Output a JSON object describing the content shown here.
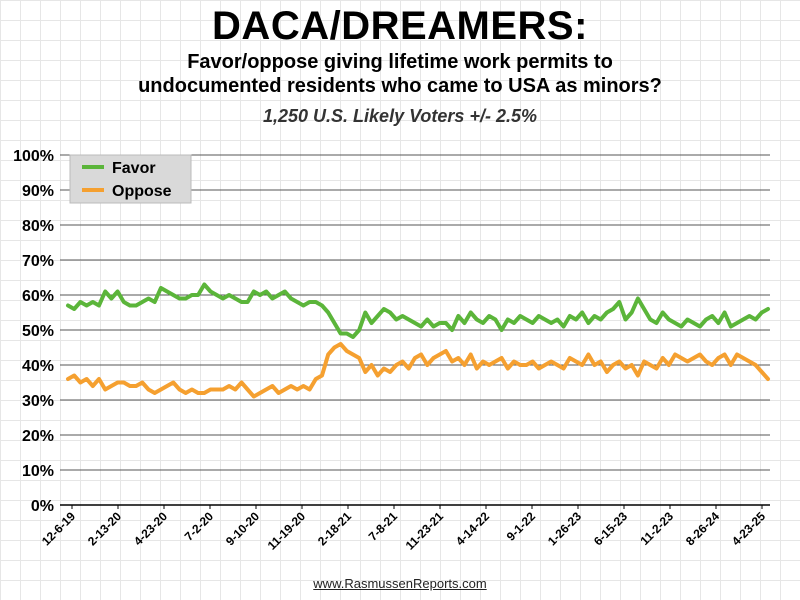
{
  "header": {
    "title": "DACA/DREAMERS:",
    "subtitle_line1": "Favor/oppose giving lifetime work permits to",
    "subtitle_line2": "undocumented residents who came to USA as minors?",
    "sample": "1,250 U.S. Likely Voters +/- 2.5%"
  },
  "footer": {
    "source": "www.RasmussenReports.com"
  },
  "colors": {
    "favor": "#5bb53a",
    "oppose": "#f5a030",
    "legend_bg": "#d9d9d9"
  },
  "chart_data": {
    "type": "line",
    "title": "DACA/DREAMERS:",
    "ylim": [
      0,
      100
    ],
    "y_ticks": [
      "0%",
      "10%",
      "20%",
      "30%",
      "40%",
      "50%",
      "60%",
      "70%",
      "80%",
      "90%",
      "100%"
    ],
    "x_tick_labels": [
      "12-6-19",
      "2-13-20",
      "4-23-20",
      "7-2-20",
      "9-10-20",
      "11-19-20",
      "2-18-21",
      "7-8-21",
      "11-23-21",
      "4-14-22",
      "9-1-22",
      "1-26-23",
      "6-15-23",
      "11-2-23",
      "8-26-24",
      "4-23-25"
    ],
    "grid": true,
    "legend": "top-left",
    "series": [
      {
        "name": "Favor",
        "values": [
          57,
          56,
          58,
          57,
          58,
          57,
          61,
          59,
          61,
          58,
          57,
          57,
          58,
          59,
          58,
          62,
          61,
          60,
          59,
          59,
          60,
          60,
          63,
          61,
          60,
          59,
          60,
          59,
          58,
          58,
          61,
          60,
          61,
          59,
          60,
          61,
          59,
          58,
          57,
          58,
          58,
          57,
          55,
          52,
          49,
          49,
          48,
          50,
          55,
          52,
          54,
          56,
          55,
          53,
          54,
          53,
          52,
          51,
          53,
          51,
          52,
          52,
          50,
          54,
          52,
          55,
          53,
          52,
          54,
          53,
          50,
          53,
          52,
          54,
          53,
          52,
          54,
          53,
          52,
          53,
          51,
          54,
          53,
          55,
          52,
          54,
          53,
          55,
          56,
          58,
          53,
          55,
          59,
          56,
          53,
          52,
          55,
          53,
          52,
          51,
          53,
          52,
          51,
          53,
          54,
          52,
          55,
          51,
          52,
          53,
          54,
          53,
          55,
          56
        ]
      },
      {
        "name": "Oppose",
        "values": [
          36,
          37,
          35,
          36,
          34,
          36,
          33,
          34,
          35,
          35,
          34,
          34,
          35,
          33,
          32,
          33,
          34,
          35,
          33,
          32,
          33,
          32,
          32,
          33,
          33,
          33,
          34,
          33,
          35,
          33,
          31,
          32,
          33,
          34,
          32,
          33,
          34,
          33,
          34,
          33,
          36,
          37,
          43,
          45,
          46,
          44,
          43,
          42,
          38,
          40,
          37,
          39,
          38,
          40,
          41,
          39,
          42,
          43,
          40,
          42,
          43,
          44,
          41,
          42,
          40,
          43,
          39,
          41,
          40,
          41,
          42,
          39,
          41,
          40,
          40,
          41,
          39,
          40,
          41,
          40,
          39,
          42,
          41,
          40,
          43,
          40,
          41,
          38,
          40,
          41,
          39,
          40,
          37,
          41,
          40,
          39,
          42,
          40,
          43,
          42,
          41,
          42,
          43,
          41,
          40,
          42,
          43,
          40,
          43,
          42,
          41,
          40,
          38,
          36
        ]
      }
    ]
  }
}
